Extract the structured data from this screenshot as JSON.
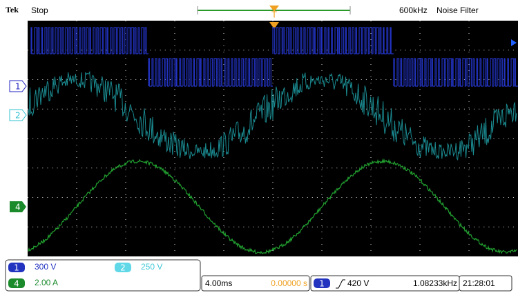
{
  "header": {
    "brand": "Tek",
    "status": "Stop",
    "bandwidth": "600kHz",
    "filter": "Noise Filter"
  },
  "markers": [
    "1",
    "2",
    "4"
  ],
  "channels": [
    {
      "badge": "1",
      "scale": "300 V"
    },
    {
      "badge": "2",
      "scale": "250 V"
    },
    {
      "badge": "4",
      "scale": "2.00 A"
    }
  ],
  "timebase": {
    "scale": "4.00ms",
    "position": "0.00000 s"
  },
  "trigger": {
    "source": "1",
    "level": "420 V",
    "frequency": "1.08233kHz"
  },
  "clock": "21:28:01"
}
